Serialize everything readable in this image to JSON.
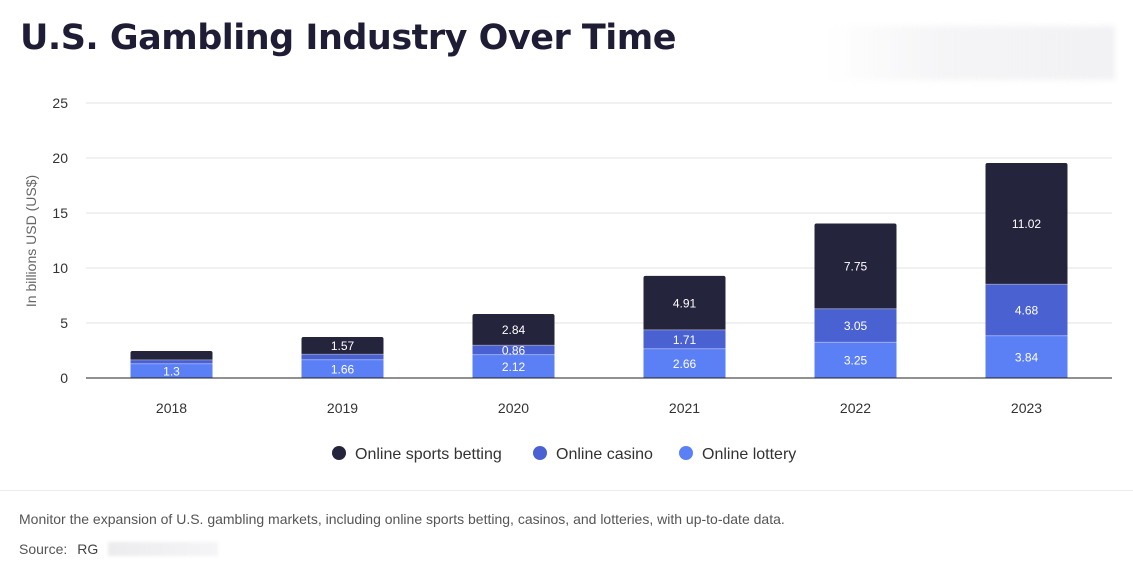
{
  "header": {
    "title": "U.S. Gambling Industry Over Time"
  },
  "chart_data": {
    "type": "bar",
    "stacked": true,
    "title": "U.S. Gambling Industry Over Time",
    "xlabel": "",
    "ylabel": "In billions USD (US$)",
    "ylim": [
      0,
      25
    ],
    "yticks": [
      0,
      5,
      10,
      15,
      20,
      25
    ],
    "grid": true,
    "legend_position": "bottom",
    "categories": [
      "2018",
      "2019",
      "2020",
      "2021",
      "2022",
      "2023"
    ],
    "series": [
      {
        "name": "Online lottery",
        "color": "#5b7ff5",
        "values": [
          1.3,
          1.66,
          2.12,
          2.66,
          3.25,
          3.84
        ],
        "labels": [
          "1.3",
          "1.66",
          "2.12",
          "2.66",
          "3.25",
          "3.84"
        ]
      },
      {
        "name": "Online casino",
        "color": "#4a61d1",
        "values": [
          0.35,
          0.5,
          0.86,
          1.71,
          3.05,
          4.68
        ],
        "labels": [
          "",
          "",
          "0.86",
          "1.71",
          "3.05",
          "4.68"
        ]
      },
      {
        "name": "Online sports betting",
        "color": "#25243d",
        "values": [
          0.8,
          1.57,
          2.84,
          4.91,
          7.75,
          11.02
        ],
        "labels": [
          "",
          "1.57",
          "2.84",
          "4.91",
          "7.75",
          "11.02"
        ]
      }
    ],
    "legend_order": [
      "Online sports betting",
      "Online casino",
      "Online lottery"
    ]
  },
  "footer": {
    "description": "Monitor the expansion of U.S. gambling markets, including online sports betting, casinos, and lotteries, with up-to-date data.",
    "source_label": "Source:",
    "source_value": "RG"
  }
}
